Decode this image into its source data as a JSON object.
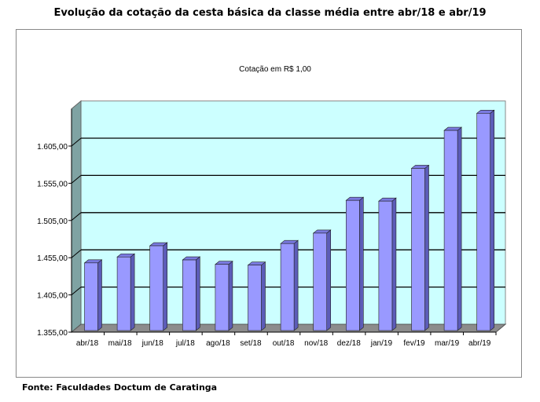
{
  "title": "Evolução da cotação da cesta básica da classe média entre abr/18 e abr/19",
  "footer": "Fonte: Faculdades Doctum de Caratinga",
  "chart_data": {
    "type": "bar",
    "subtitle": "Cotação em R$ 1,00",
    "categories": [
      "abr/18",
      "mai/18",
      "jun/18",
      "jul/18",
      "ago/18",
      "set/18",
      "out/18",
      "nov/18",
      "dez/18",
      "jan/19",
      "fev/19",
      "mar/19",
      "abr/19"
    ],
    "values": [
      1448,
      1456,
      1471,
      1452,
      1446,
      1445,
      1474,
      1488,
      1532,
      1531,
      1575,
      1626,
      1649
    ],
    "ylim": [
      1355,
      1655
    ],
    "yticks": [
      1355,
      1405,
      1455,
      1505,
      1555,
      1605
    ],
    "ytick_labels": [
      "1.355,00",
      "1.405,00",
      "1.455,00",
      "1.505,00",
      "1.555,00",
      "1.605,00"
    ],
    "grid": true,
    "colors": {
      "bar": "#9999ff",
      "bar_side": "#5c5cb8",
      "bar_top": "#7a7ae0",
      "wall": "#ccffff",
      "side_wall": "#7fa3a3",
      "floor": "#8c8c8c"
    }
  }
}
